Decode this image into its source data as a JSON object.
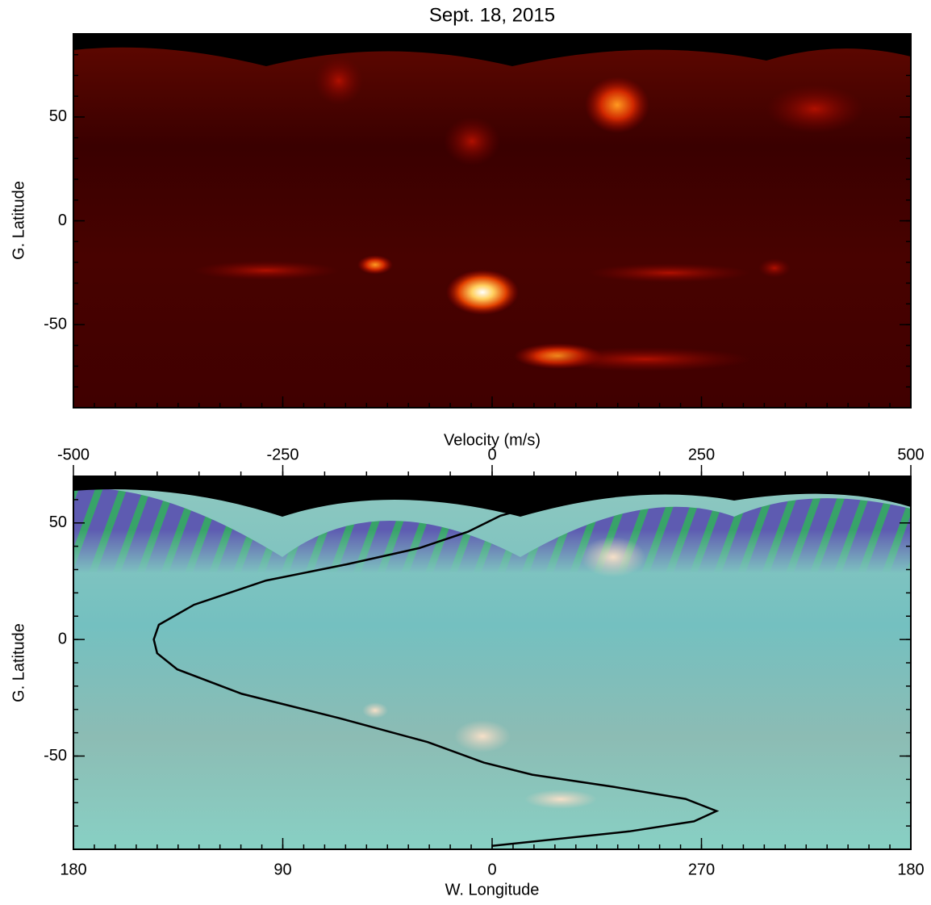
{
  "chart_data": [
    {
      "type": "heatmap",
      "title": "Sept. 18, 2015",
      "ylabel": "G. Latitude",
      "ylim": [
        -90,
        90
      ],
      "yticks": [
        -50,
        0,
        50
      ]
    },
    {
      "type": "line",
      "ylabel": "G. Latitude",
      "xlabel": "W. Longitude",
      "x2label": "Velocity (m/s)",
      "ylim": [
        -90,
        70
      ],
      "yticks": [
        -50,
        0,
        50
      ],
      "xlim": [
        180,
        -180
      ],
      "xticks": [
        180,
        90,
        0,
        {
          "value": -90,
          "label": "270"
        },
        {
          "value": -180,
          "label": "180"
        }
      ],
      "x2lim": [
        -500,
        500
      ],
      "x2ticks": [
        -500,
        -250,
        0,
        250,
        500
      ],
      "series": [
        {
          "color": "#000000",
          "axis": "x2",
          "x": [
            0,
            164,
            241,
            268,
            231,
            145,
            48,
            -10,
            -77,
            -183,
            -299,
            -376,
            -400,
            -404,
            -398,
            -356,
            -270,
            -173,
            -87,
            -29,
            10,
            29,
            70,
            130
          ],
          "values": [
            -88.5,
            -82.3,
            -78,
            -73.6,
            -68.4,
            -63.2,
            -58,
            -52.8,
            -44,
            -33.7,
            -23.3,
            -12.8,
            -5.9,
            0,
            6.3,
            14.9,
            25.3,
            32.3,
            39.2,
            46.2,
            53.1,
            55,
            62,
            65
          ]
        }
      ]
    }
  ]
}
